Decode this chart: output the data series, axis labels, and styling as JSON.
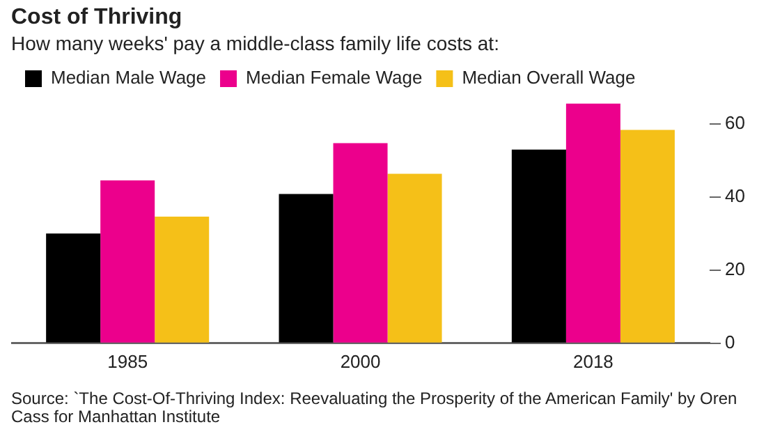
{
  "chart_data": {
    "type": "bar",
    "title": "Cost of Thriving",
    "subtitle": "How many weeks' pay a middle-class family life costs at:",
    "categories": [
      "1985",
      "2000",
      "2018"
    ],
    "series": [
      {
        "name": "Median Male Wage",
        "color": "#000000",
        "values": [
          30,
          40.8,
          52.9
        ]
      },
      {
        "name": "Median Female Wage",
        "color": "#ec008c",
        "values": [
          44.5,
          54.7,
          65.5
        ]
      },
      {
        "name": "Median Overall Wage",
        "color": "#f5c018",
        "values": [
          34.6,
          46.3,
          58.3
        ]
      }
    ],
    "ylim": [
      0,
      66
    ],
    "yticks": [
      0,
      20,
      40,
      60
    ],
    "grid": false,
    "legend": "top left",
    "annotations": [
      "Source: `The Cost-Of-Thriving Index: Reevaluating the Prosperity of the American Family' by Oren Cass for Manhattan Institute"
    ]
  }
}
